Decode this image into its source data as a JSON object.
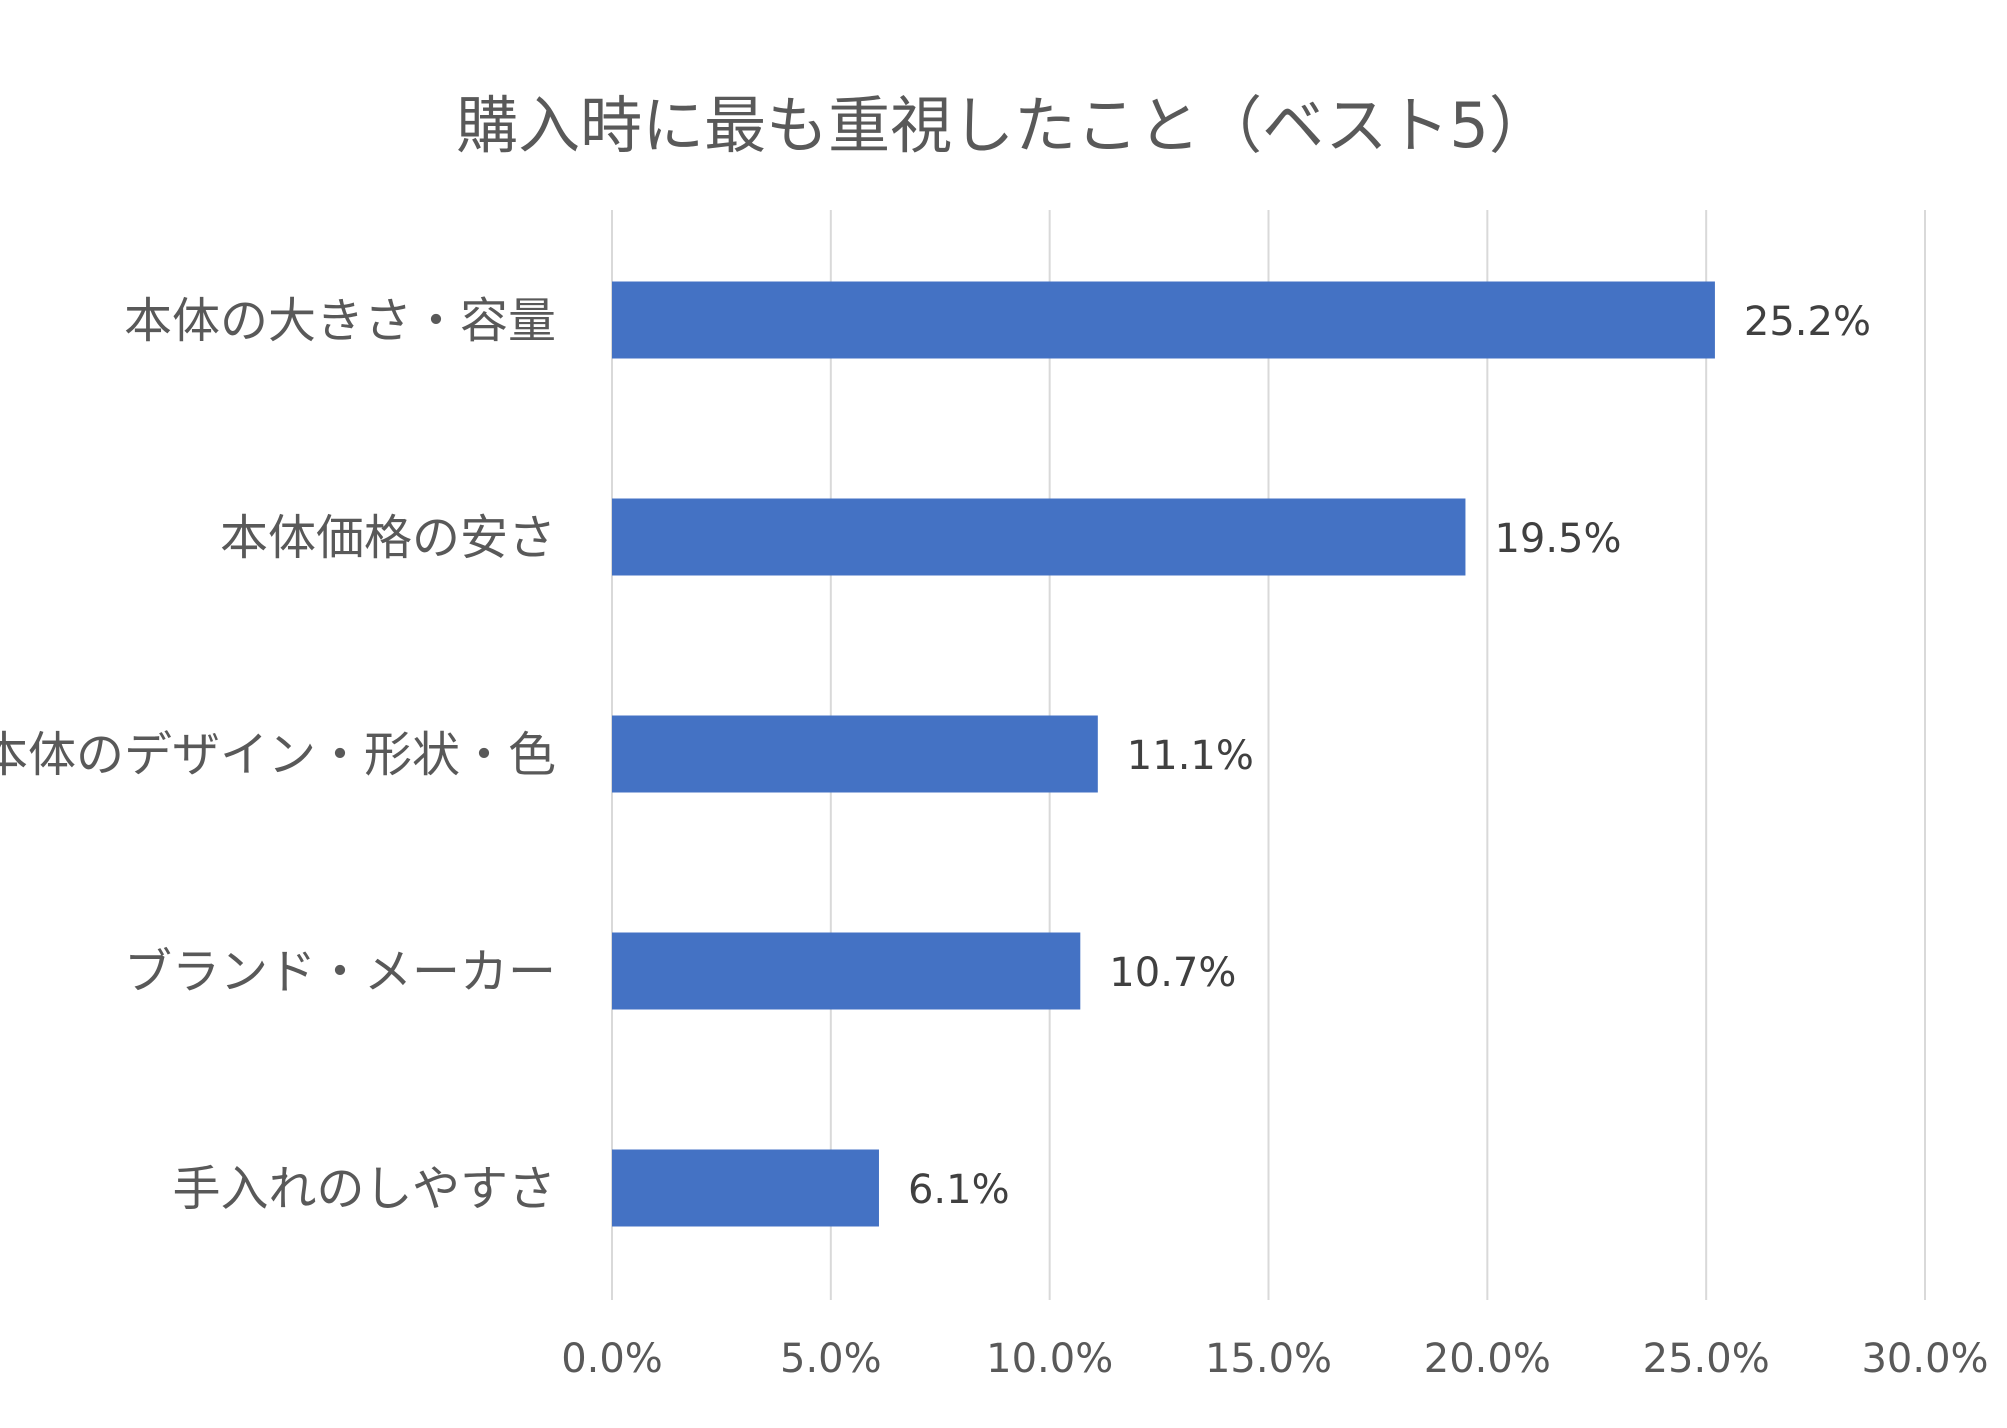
{
  "chart_data": {
    "type": "bar",
    "orientation": "horizontal",
    "title": "購入時に最も重視したこと（ベスト5）",
    "categories": [
      "本体の大きさ・容量",
      "本体価格の安さ",
      "本体のデザイン・形状・色",
      "ブランド・メーカー",
      "手入れのしやすさ"
    ],
    "values": [
      25.2,
      19.5,
      11.1,
      10.7,
      6.1
    ],
    "value_labels": [
      "25.2%",
      "19.5%",
      "11.1%",
      "10.7%",
      "6.1%"
    ],
    "x_ticks": [
      0,
      5,
      10,
      15,
      20,
      25,
      30
    ],
    "x_tick_labels": [
      "0.0%",
      "5.0%",
      "10.0%",
      "15.0%",
      "20.0%",
      "25.0%",
      "30.0%"
    ],
    "xlim": [
      0,
      30
    ],
    "xlabel": "",
    "ylabel": "",
    "grid": "vertical",
    "legend": "none",
    "bar_color": "#4472C4",
    "grid_color": "#D9D9D9",
    "text_color": "#595959",
    "label_color": "#404040"
  }
}
